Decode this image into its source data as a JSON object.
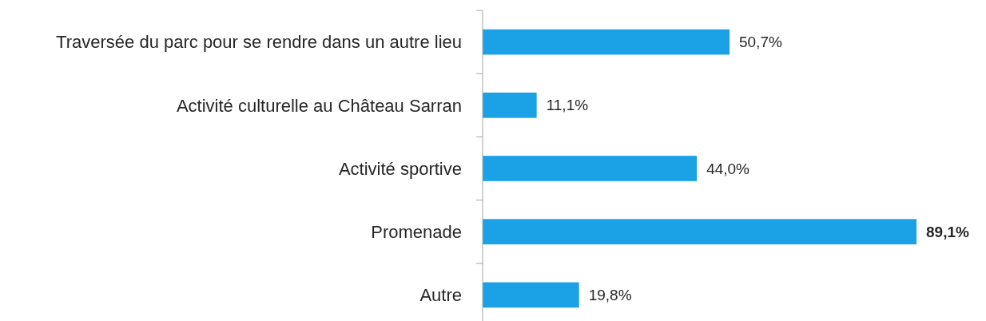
{
  "chart_data": {
    "type": "bar",
    "orientation": "horizontal",
    "categories": [
      "Traversée du parc pour se rendre dans un autre lieu",
      "Activité culturelle au Château Sarran",
      "Activité sportive",
      "Promenade",
      "Autre"
    ],
    "values": [
      50.7,
      11.1,
      44.0,
      89.1,
      19.8
    ],
    "value_labels": [
      "50,7%",
      "11,1%",
      "44,0%",
      "89,1%",
      "19,8%"
    ],
    "color": "#1ba1e6"
  }
}
